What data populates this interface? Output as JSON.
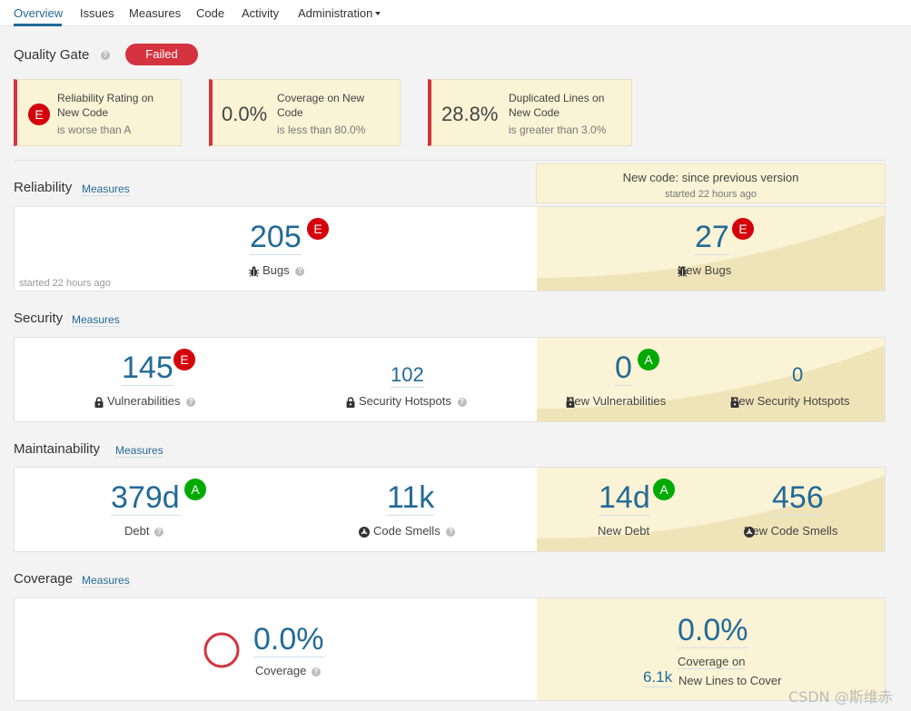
{
  "nav": {
    "tabs": [
      "Overview",
      "Issues",
      "Measures",
      "Code",
      "Activity",
      "Administration"
    ],
    "active": "Overview"
  },
  "quality_gate": {
    "title": "Quality Gate",
    "status": "Failed",
    "conditions": [
      {
        "rating": "E",
        "label": "Reliability Rating on New Code",
        "detail": "is worse than A"
      },
      {
        "value": "0.0%",
        "label": "Coverage on New Code",
        "detail": "is less than 80.0%"
      },
      {
        "value": "28.8%",
        "label": "Duplicated Lines on New Code",
        "detail": "is greater than 3.0%"
      }
    ]
  },
  "new_code": {
    "title": "New code: since previous version",
    "subtitle": "started 22 hours ago"
  },
  "measures_link": "Measures",
  "reliability": {
    "title": "Reliability",
    "bugs": "205",
    "bugs_rating": "E",
    "bugs_label": "Bugs",
    "note": "started 22 hours ago",
    "new_bugs": "27",
    "new_bugs_rating": "E",
    "new_bugs_label": "New Bugs"
  },
  "security": {
    "title": "Security",
    "vulns": "145",
    "vulns_rating": "E",
    "vulns_label": "Vulnerabilities",
    "hotspots": "102",
    "hotspots_label": "Security Hotspots",
    "new_vulns": "0",
    "new_vulns_rating": "A",
    "new_vulns_label": "New Vulnerabilities",
    "new_hotspots": "0",
    "new_hotspots_label": "New Security Hotspots"
  },
  "maintainability": {
    "title": "Maintainability",
    "debt": "379d",
    "debt_rating": "A",
    "debt_label": "Debt",
    "smells": "11k",
    "smells_label": "Code Smells",
    "new_debt": "14d",
    "new_debt_rating": "A",
    "new_debt_label": "New Debt",
    "new_smells": "456",
    "new_smells_label": "New Code Smells"
  },
  "coverage": {
    "title": "Coverage",
    "value": "0.0%",
    "label": "Coverage",
    "new_value": "0.0%",
    "new_label_1": "Coverage on",
    "new_label_2": "New Lines to Cover",
    "new_lines": "6.1k"
  },
  "watermark": "CSDN @斯维赤",
  "colors": {
    "accent": "#236a97",
    "failed": "#d4333f",
    "rating_e": "#d4000b",
    "rating_a": "#00aa00",
    "new_code_bg": "#fbf3d5"
  }
}
